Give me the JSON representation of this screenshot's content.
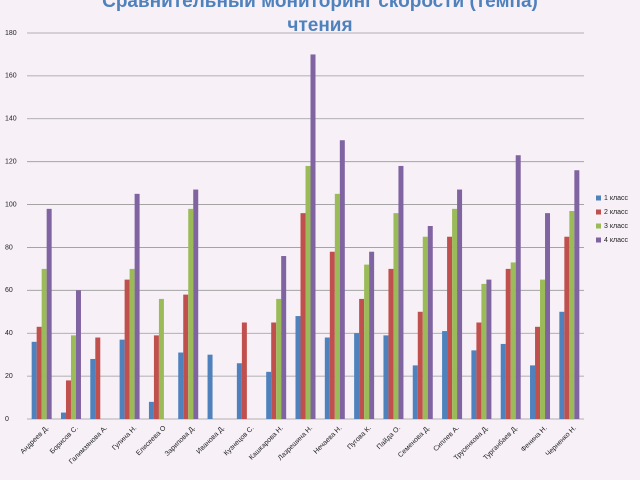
{
  "chart_data": {
    "type": "bar",
    "title": "Сравнительный мониторинг скорости (темпа) чтения",
    "categories": [
      "Андреев Д.",
      "Борисов С.",
      "Галимзянова А.",
      "Гулина Н.",
      "Елисеева О",
      "Зарипова Д.",
      "Иванова Д.",
      "Кузнецов С.",
      "Кашкарова Н.",
      "Лазрешина Н.",
      "Нечаева Н.",
      "Пугова К.",
      "Пайда О.",
      "Семенова Д.",
      "Сиплев А.",
      "Трусенкова Д.",
      "Турганбаев Д.",
      "Фенина Н.",
      "Черненко Н."
    ],
    "series": [
      {
        "name": "1 класс",
        "color": "#4f81bd",
        "values": [
          36,
          3,
          28,
          37,
          8,
          31,
          30,
          26,
          22,
          48,
          38,
          40,
          39,
          25,
          41,
          32,
          35,
          25,
          50
        ]
      },
      {
        "name": "2 класс",
        "color": "#c0504d",
        "values": [
          43,
          18,
          38,
          65,
          39,
          58,
          null,
          45,
          45,
          96,
          78,
          56,
          70,
          50,
          85,
          45,
          70,
          43,
          85
        ]
      },
      {
        "name": "3 класс",
        "color": "#9bbb59",
        "values": [
          70,
          39,
          null,
          70,
          56,
          98,
          null,
          null,
          56,
          118,
          105,
          72,
          96,
          85,
          98,
          63,
          73,
          65,
          97
        ]
      },
      {
        "name": "4 класс",
        "color": "#8064a2",
        "values": [
          98,
          60,
          null,
          105,
          null,
          107,
          null,
          null,
          76,
          170,
          130,
          78,
          118,
          90,
          107,
          65,
          123,
          96,
          116
        ]
      }
    ],
    "ylim": [
      0,
      180
    ],
    "yticks": [
      0,
      20,
      40,
      60,
      80,
      100,
      120,
      140,
      160,
      180
    ],
    "grid": true,
    "legend": "right"
  }
}
